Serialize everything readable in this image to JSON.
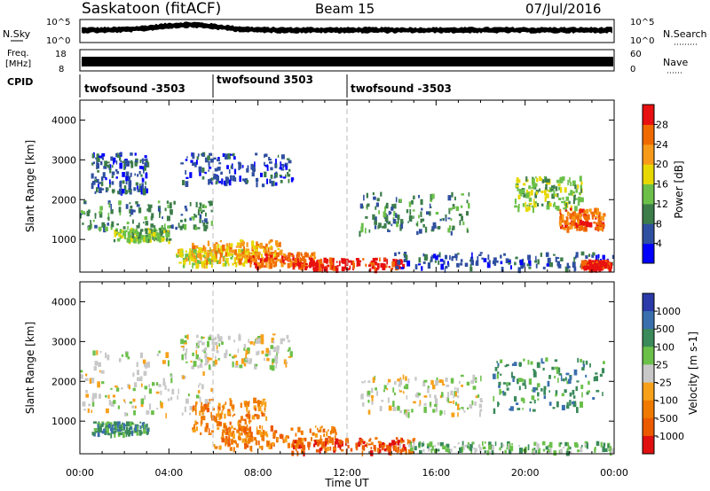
{
  "header": {
    "station": "Saskatoon (fitACF)",
    "beam": "Beam 15",
    "date": "07/Jul/2016"
  },
  "top_panels": {
    "nsky": {
      "left_label": "N.Sky",
      "right_label": "N.Search",
      "tick_top": "10^5",
      "tick_bottom": "10^0"
    },
    "freq": {
      "left_label_1": "Freq.",
      "left_label_2": "[MHz]",
      "tick_top": "18",
      "tick_bottom": "8",
      "right_tick_top": "60",
      "right_tick_bottom": "0",
      "right_label": "Nave"
    },
    "cpid": {
      "label": "CPID",
      "segments": [
        "twofsound -3503",
        "twofsound 3503",
        "twofsound -3503"
      ]
    }
  },
  "colors": {
    "power": [
      "#0000ff",
      "#2f4fa0",
      "#3c7d4a",
      "#6cc04a",
      "#e6d800",
      "#f79a1a",
      "#f06a00",
      "#e81010"
    ],
    "velocity": [
      "#2a3aa8",
      "#3a6fae",
      "#3a8a5a",
      "#6bc04a",
      "#c8c8c8",
      "#f7a11a",
      "#f07a00",
      "#ec5a00",
      "#e01010"
    ]
  },
  "chart_data": [
    {
      "type": "heatmap",
      "name": "power",
      "ylabel": "Slant Range [km]",
      "xlabel": "",
      "colorbar_label": "Power [dB]",
      "colorbar_ticks": [
        "4",
        "8",
        "12",
        "16",
        "20",
        "24",
        "28"
      ],
      "x_ticks": [
        "00:00",
        "04:00",
        "08:00",
        "12:00",
        "16:00",
        "20:00",
        "00:00"
      ],
      "y_ticks": [
        "1000",
        "2000",
        "3000",
        "4000"
      ],
      "x_range_hours": [
        0,
        24
      ],
      "y_range_km": [
        180,
        4500
      ],
      "regions": [
        {
          "x": [
            0.0,
            6.0
          ],
          "y": [
            1300,
            2000
          ],
          "level": 2
        },
        {
          "x": [
            1.5,
            4.0
          ],
          "y": [
            1000,
            1300
          ],
          "level": 3
        },
        {
          "x": [
            0.5,
            3.0
          ],
          "y": [
            2200,
            3200
          ],
          "level": 1
        },
        {
          "x": [
            4.5,
            9.5
          ],
          "y": [
            2400,
            3200
          ],
          "level": 1
        },
        {
          "x": [
            4.3,
            7.5
          ],
          "y": [
            400,
            800
          ],
          "level": 4
        },
        {
          "x": [
            5.0,
            9.0
          ],
          "y": [
            500,
            1000
          ],
          "level": 5
        },
        {
          "x": [
            7.5,
            10.5
          ],
          "y": [
            350,
            700
          ],
          "level": 6
        },
        {
          "x": [
            9.5,
            14.5
          ],
          "y": [
            280,
            550
          ],
          "level": 7
        },
        {
          "x": [
            12.5,
            17.5
          ],
          "y": [
            1200,
            2200
          ],
          "level": 2
        },
        {
          "x": [
            14.0,
            24.0
          ],
          "y": [
            300,
            700
          ],
          "level": 1
        },
        {
          "x": [
            19.5,
            22.5
          ],
          "y": [
            1800,
            2600
          ],
          "level": 3
        },
        {
          "x": [
            21.5,
            23.5
          ],
          "y": [
            1300,
            1800
          ],
          "level": 6
        },
        {
          "x": [
            22.5,
            23.8
          ],
          "y": [
            300,
            500
          ],
          "level": 7
        }
      ]
    },
    {
      "type": "heatmap",
      "name": "velocity",
      "ylabel": "Slant Range [km]",
      "xlabel": "Time UT",
      "colorbar_label": "Velocity [m s-1]",
      "colorbar_ticks": [
        "1000",
        "500",
        "100",
        "25",
        "-25",
        "-100",
        "-500",
        "-1000"
      ],
      "x_ticks": [
        "00:00",
        "04:00",
        "08:00",
        "12:00",
        "16:00",
        "20:00",
        "00:00"
      ],
      "y_ticks": [
        "1000",
        "2000",
        "3000",
        "4000"
      ],
      "x_range_hours": [
        0,
        24
      ],
      "y_range_km": [
        180,
        4500
      ],
      "regions": [
        {
          "x": [
            0.0,
            6.0
          ],
          "y": [
            1200,
            2800
          ],
          "level": 4
        },
        {
          "x": [
            4.5,
            9.5
          ],
          "y": [
            2400,
            3200
          ],
          "level": 4
        },
        {
          "x": [
            5.0,
            8.5
          ],
          "y": [
            700,
            1600
          ],
          "level": 6
        },
        {
          "x": [
            6.0,
            11.5
          ],
          "y": [
            350,
            900
          ],
          "level": 6
        },
        {
          "x": [
            9.5,
            15.0
          ],
          "y": [
            250,
            600
          ],
          "level": 7
        },
        {
          "x": [
            12.5,
            18.0
          ],
          "y": [
            1200,
            2200
          ],
          "level": 4
        },
        {
          "x": [
            14.0,
            24.0
          ],
          "y": [
            250,
            500
          ],
          "level": 3
        },
        {
          "x": [
            18.5,
            23.5
          ],
          "y": [
            1300,
            2600
          ],
          "level": 2
        },
        {
          "x": [
            0.5,
            3.0
          ],
          "y": [
            700,
            1000
          ],
          "level": 2
        }
      ]
    }
  ]
}
